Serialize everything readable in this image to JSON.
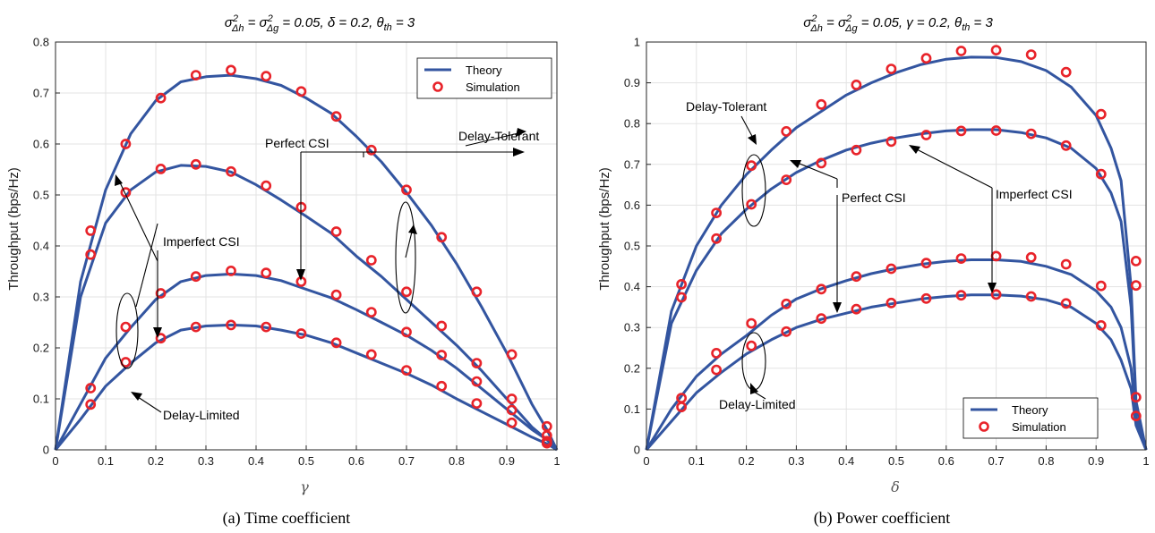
{
  "chart_data": [
    {
      "type": "line",
      "title": "σ²_Δh = σ²_Δg = 0.05, δ = 0.2, θ_th = 3",
      "title_parts": {
        "sigma": "σ",
        "sup": "2",
        "sub_h": "Δh",
        "sub_g": "Δg",
        "eq1": " = ",
        "eq2": " = 0.05, δ = 0.2, θ",
        "sub_th": "th",
        "tail": " = 3"
      },
      "xlabel": "γ",
      "ylabel": "Throughput (bps/Hz)",
      "caption": "(a)  Time coefficient",
      "xlim": [
        0,
        1
      ],
      "ylim": [
        0,
        0.8
      ],
      "xticks": [
        "0",
        "0.1",
        "0.2",
        "0.3",
        "0.4",
        "0.5",
        "0.6",
        "0.7",
        "0.8",
        "0.9",
        "1"
      ],
      "yticks": [
        "0",
        "0.1",
        "0.2",
        "0.3",
        "0.4",
        "0.5",
        "0.6",
        "0.7",
        "0.8"
      ],
      "grid": true,
      "legend": {
        "position": "top-right",
        "theory": "Theory",
        "simulation": "Simulation"
      },
      "colors": {
        "theory": "#3355a0",
        "simulation": "#e8232a"
      },
      "annotations": {
        "perfect": "Perfect CSI",
        "tolerant": "Delay-Tolerant",
        "imperfect": "Imperfect CSI",
        "limited": "Delay-Limited"
      },
      "series": [
        {
          "x": [
            0,
            0.05,
            0.1,
            0.15,
            0.2,
            0.25,
            0.3,
            0.35,
            0.4,
            0.45,
            0.5,
            0.55,
            0.6,
            0.65,
            0.7,
            0.75,
            0.8,
            0.85,
            0.9,
            0.95,
            0.98,
            1
          ],
          "theory": [
            0,
            0.33,
            0.51,
            0.62,
            0.685,
            0.722,
            0.732,
            0.735,
            0.728,
            0.715,
            0.69,
            0.66,
            0.615,
            0.565,
            0.505,
            0.44,
            0.365,
            0.28,
            0.19,
            0.09,
            0.04,
            0
          ],
          "sim_x": [
            0.07,
            0.14,
            0.21,
            0.28,
            0.35,
            0.42,
            0.49,
            0.56,
            0.63,
            0.7,
            0.77,
            0.84,
            0.91,
            0.98
          ],
          "sim_y": [
            0.43,
            0.6,
            0.69,
            0.735,
            0.745,
            0.733,
            0.703,
            0.654,
            0.588,
            0.51,
            0.417,
            0.31,
            0.187,
            0.046
          ]
        },
        {
          "x": [
            0,
            0.05,
            0.1,
            0.15,
            0.2,
            0.25,
            0.3,
            0.35,
            0.4,
            0.45,
            0.5,
            0.55,
            0.6,
            0.65,
            0.7,
            0.75,
            0.8,
            0.85,
            0.9,
            0.95,
            0.98,
            1
          ],
          "theory": [
            0,
            0.3,
            0.445,
            0.51,
            0.545,
            0.558,
            0.556,
            0.545,
            0.52,
            0.49,
            0.458,
            0.425,
            0.38,
            0.34,
            0.295,
            0.25,
            0.205,
            0.155,
            0.1,
            0.045,
            0.02,
            0
          ],
          "sim_x": [
            0.07,
            0.14,
            0.21,
            0.28,
            0.35,
            0.42,
            0.49,
            0.56,
            0.63,
            0.7,
            0.77,
            0.84,
            0.91,
            0.98
          ],
          "sim_y": [
            0.383,
            0.505,
            0.551,
            0.56,
            0.546,
            0.518,
            0.476,
            0.428,
            0.372,
            0.31,
            0.243,
            0.17,
            0.1,
            0.028
          ]
        },
        {
          "x": [
            0,
            0.05,
            0.1,
            0.15,
            0.2,
            0.25,
            0.3,
            0.35,
            0.4,
            0.45,
            0.5,
            0.55,
            0.6,
            0.65,
            0.7,
            0.75,
            0.8,
            0.85,
            0.9,
            0.95,
            0.98,
            1
          ],
          "theory": [
            0,
            0.09,
            0.18,
            0.24,
            0.295,
            0.33,
            0.342,
            0.345,
            0.342,
            0.332,
            0.315,
            0.298,
            0.275,
            0.25,
            0.225,
            0.195,
            0.16,
            0.12,
            0.08,
            0.04,
            0.02,
            0
          ],
          "sim_x": [
            0.07,
            0.14,
            0.21,
            0.28,
            0.35,
            0.42,
            0.49,
            0.56,
            0.63,
            0.7,
            0.77,
            0.84,
            0.91,
            0.98
          ],
          "sim_y": [
            0.121,
            0.241,
            0.307,
            0.34,
            0.351,
            0.347,
            0.33,
            0.304,
            0.27,
            0.231,
            0.186,
            0.134,
            0.078,
            0.017
          ]
        },
        {
          "x": [
            0,
            0.05,
            0.1,
            0.15,
            0.2,
            0.25,
            0.3,
            0.35,
            0.4,
            0.45,
            0.5,
            0.55,
            0.6,
            0.65,
            0.7,
            0.75,
            0.8,
            0.85,
            0.9,
            0.95,
            0.98,
            1
          ],
          "theory": [
            0,
            0.06,
            0.125,
            0.17,
            0.21,
            0.235,
            0.243,
            0.245,
            0.243,
            0.235,
            0.225,
            0.21,
            0.19,
            0.17,
            0.15,
            0.127,
            0.1,
            0.075,
            0.05,
            0.025,
            0.012,
            0
          ],
          "sim_x": [
            0.07,
            0.14,
            0.21,
            0.28,
            0.35,
            0.42,
            0.49,
            0.56,
            0.63,
            0.7,
            0.77,
            0.84,
            0.91,
            0.98
          ],
          "sim_y": [
            0.089,
            0.172,
            0.219,
            0.241,
            0.245,
            0.241,
            0.228,
            0.21,
            0.187,
            0.156,
            0.125,
            0.091,
            0.053,
            0.013
          ]
        }
      ]
    },
    {
      "type": "line",
      "title": "σ²_Δh = σ²_Δg = 0.05, γ = 0.2, θ_th = 3",
      "title_parts": {
        "sigma": "σ",
        "sup": "2",
        "sub_h": "Δh",
        "sub_g": "Δg",
        "eq1": " = ",
        "eq2": " = 0.05, γ = 0.2, θ",
        "sub_th": "th",
        "tail": " = 3"
      },
      "xlabel": "δ",
      "ylabel": "Throughput (bps/Hz)",
      "caption": "(b)  Power coefficient",
      "xlim": [
        0,
        1
      ],
      "ylim": [
        0,
        1
      ],
      "xticks": [
        "0",
        "0.1",
        "0.2",
        "0.3",
        "0.4",
        "0.5",
        "0.6",
        "0.7",
        "0.8",
        "0.9",
        "1"
      ],
      "yticks": [
        "0",
        "0.1",
        "0.2",
        "0.3",
        "0.4",
        "0.5",
        "0.6",
        "0.7",
        "0.8",
        "0.9",
        "1"
      ],
      "grid": true,
      "legend": {
        "position": "bottom-right",
        "theory": "Theory",
        "simulation": "Simulation"
      },
      "colors": {
        "theory": "#3355a0",
        "simulation": "#e8232a"
      },
      "annotations": {
        "tolerant": "Delay-Tolerant",
        "perfect": "Perfect CSI",
        "imperfect": "Imperfect CSI",
        "limited": "Delay-Limited"
      },
      "series": [
        {
          "x": [
            0,
            0.05,
            0.1,
            0.15,
            0.2,
            0.25,
            0.3,
            0.35,
            0.4,
            0.45,
            0.5,
            0.55,
            0.6,
            0.65,
            0.7,
            0.75,
            0.8,
            0.85,
            0.9,
            0.93,
            0.95,
            0.97,
            0.98,
            1
          ],
          "theory": [
            0,
            0.34,
            0.5,
            0.6,
            0.675,
            0.735,
            0.79,
            0.83,
            0.87,
            0.9,
            0.925,
            0.945,
            0.958,
            0.963,
            0.962,
            0.952,
            0.93,
            0.89,
            0.82,
            0.74,
            0.66,
            0.4,
            0.12,
            0
          ],
          "sim_x": [
            0.07,
            0.14,
            0.21,
            0.28,
            0.35,
            0.42,
            0.49,
            0.56,
            0.63,
            0.7,
            0.77,
            0.84,
            0.91,
            0.98
          ],
          "sim_y": [
            0.406,
            0.581,
            0.697,
            0.781,
            0.847,
            0.895,
            0.934,
            0.96,
            0.978,
            0.98,
            0.969,
            0.926,
            0.823,
            0.463
          ]
        },
        {
          "x": [
            0,
            0.05,
            0.1,
            0.15,
            0.2,
            0.25,
            0.3,
            0.35,
            0.4,
            0.45,
            0.5,
            0.55,
            0.6,
            0.65,
            0.7,
            0.75,
            0.8,
            0.85,
            0.9,
            0.93,
            0.95,
            0.97,
            0.98,
            1
          ],
          "theory": [
            0,
            0.31,
            0.44,
            0.53,
            0.59,
            0.64,
            0.68,
            0.71,
            0.735,
            0.752,
            0.765,
            0.775,
            0.782,
            0.785,
            0.785,
            0.778,
            0.765,
            0.74,
            0.69,
            0.63,
            0.56,
            0.35,
            0.11,
            0
          ],
          "sim_x": [
            0.07,
            0.14,
            0.21,
            0.28,
            0.35,
            0.42,
            0.49,
            0.56,
            0.63,
            0.7,
            0.77,
            0.84,
            0.91,
            0.98
          ],
          "sim_y": [
            0.374,
            0.518,
            0.602,
            0.662,
            0.703,
            0.735,
            0.756,
            0.772,
            0.782,
            0.783,
            0.775,
            0.746,
            0.676,
            0.403
          ]
        },
        {
          "x": [
            0,
            0.05,
            0.1,
            0.15,
            0.2,
            0.25,
            0.3,
            0.35,
            0.4,
            0.45,
            0.5,
            0.55,
            0.6,
            0.65,
            0.7,
            0.75,
            0.8,
            0.85,
            0.9,
            0.93,
            0.95,
            0.97,
            0.98,
            1
          ],
          "theory": [
            0,
            0.1,
            0.18,
            0.235,
            0.28,
            0.33,
            0.37,
            0.395,
            0.415,
            0.432,
            0.445,
            0.455,
            0.462,
            0.466,
            0.466,
            0.462,
            0.45,
            0.43,
            0.39,
            0.35,
            0.3,
            0.2,
            0.08,
            0
          ],
          "sim_x": [
            0.07,
            0.14,
            0.21,
            0.28,
            0.35,
            0.42,
            0.49,
            0.56,
            0.63,
            0.7,
            0.77,
            0.84,
            0.91,
            0.98
          ],
          "sim_y": [
            0.127,
            0.237,
            0.31,
            0.358,
            0.394,
            0.425,
            0.444,
            0.458,
            0.469,
            0.475,
            0.472,
            0.455,
            0.402,
            0.129
          ]
        },
        {
          "x": [
            0,
            0.05,
            0.1,
            0.15,
            0.2,
            0.25,
            0.3,
            0.35,
            0.4,
            0.45,
            0.5,
            0.55,
            0.6,
            0.65,
            0.7,
            0.75,
            0.8,
            0.85,
            0.9,
            0.93,
            0.95,
            0.97,
            0.98,
            1
          ],
          "theory": [
            0,
            0.07,
            0.14,
            0.19,
            0.235,
            0.27,
            0.3,
            0.32,
            0.335,
            0.35,
            0.36,
            0.37,
            0.376,
            0.38,
            0.38,
            0.377,
            0.368,
            0.35,
            0.31,
            0.27,
            0.22,
            0.15,
            0.06,
            0
          ],
          "sim_x": [
            0.07,
            0.14,
            0.21,
            0.28,
            0.35,
            0.42,
            0.49,
            0.56,
            0.63,
            0.7,
            0.77,
            0.84,
            0.91,
            0.98
          ],
          "sim_y": [
            0.105,
            0.196,
            0.255,
            0.29,
            0.322,
            0.345,
            0.36,
            0.371,
            0.379,
            0.381,
            0.376,
            0.359,
            0.305,
            0.083
          ]
        }
      ]
    }
  ]
}
